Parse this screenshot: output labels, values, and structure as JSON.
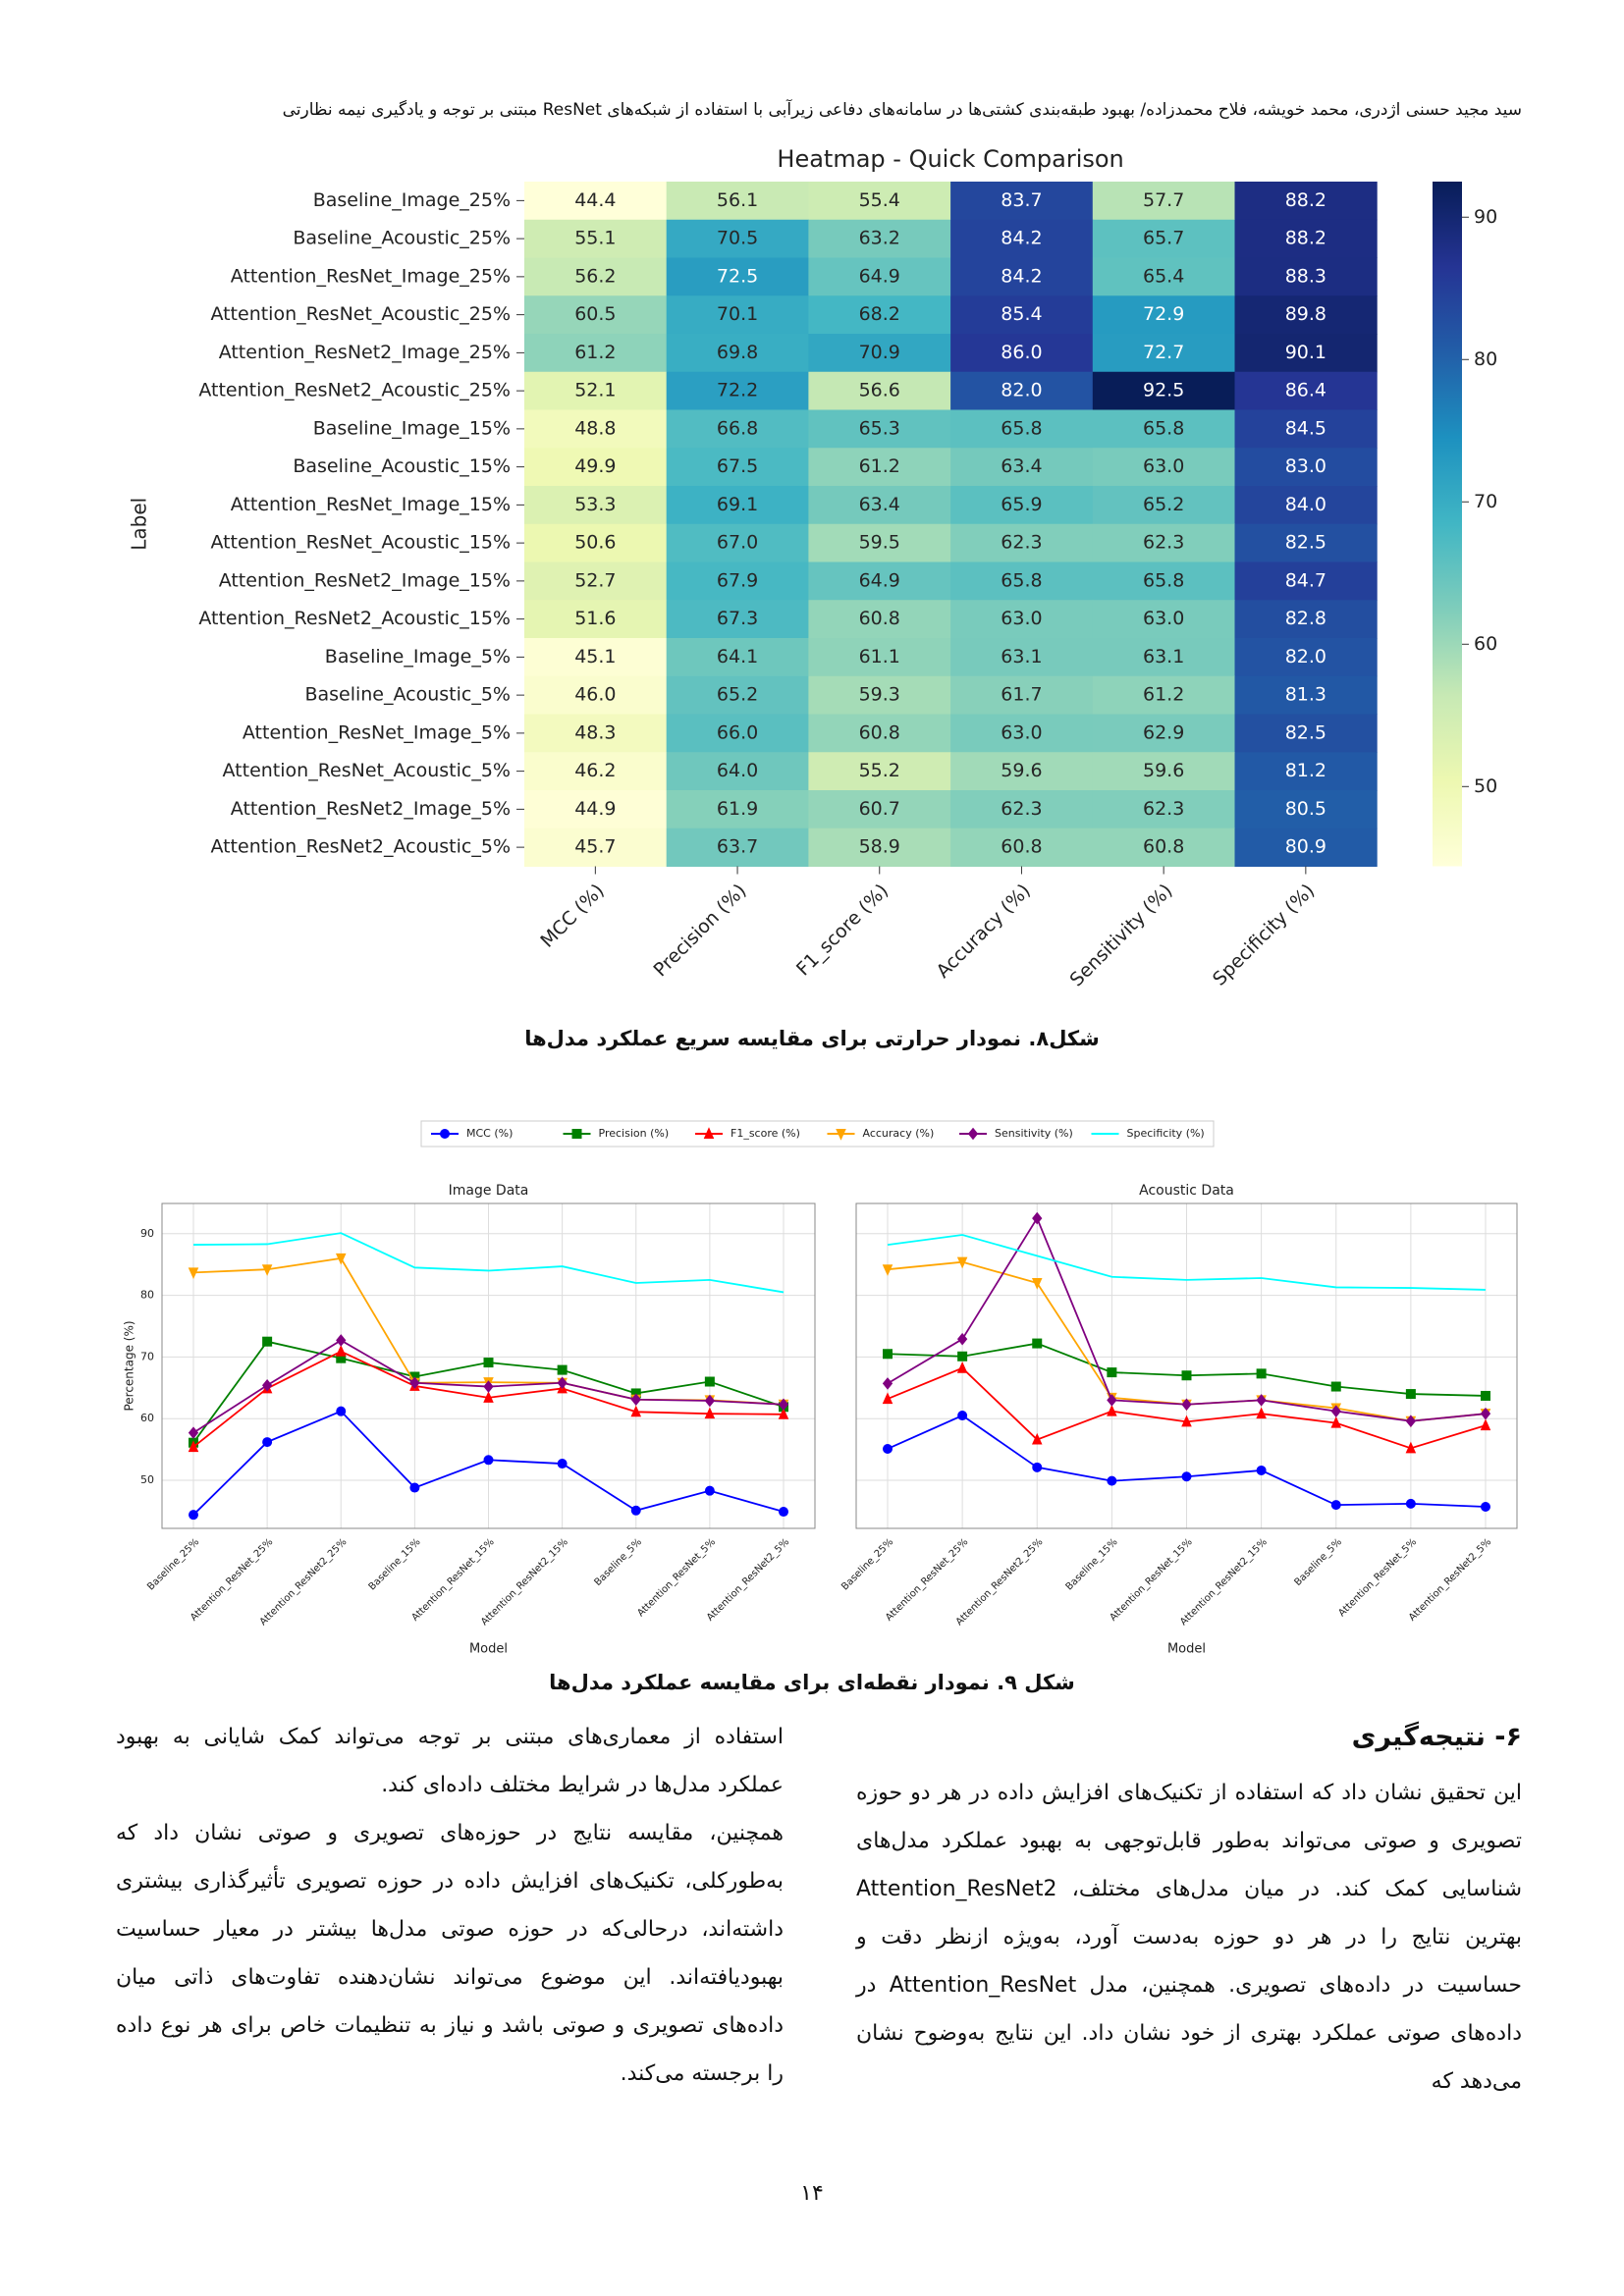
{
  "header": {
    "text": "سید مجید حسنی اژدری، محمد خویشه، فلاح محمدزاده/ بهبود طبقه‌بندی کشتی‌ها در سامانه‌های دفاعی زیرآبی با استفاده از شبکه‌های ResNet مبتنی بر توجه و یادگیری نیمه نظارتی"
  },
  "chart_data": [
    {
      "type": "heatmap",
      "title": "Heatmap - Quick Comparison",
      "ylabel": "Label",
      "rows": [
        "Baseline_Image_25%",
        "Baseline_Acoustic_25%",
        "Attention_ResNet_Image_25%",
        "Attention_ResNet_Acoustic_25%",
        "Attention_ResNet2_Image_25%",
        "Attention_ResNet2_Acoustic_25%",
        "Baseline_Image_15%",
        "Baseline_Acoustic_15%",
        "Attention_ResNet_Image_15%",
        "Attention_ResNet_Acoustic_15%",
        "Attention_ResNet2_Image_15%",
        "Attention_ResNet2_Acoustic_15%",
        "Baseline_Image_5%",
        "Baseline_Acoustic_5%",
        "Attention_ResNet_Image_5%",
        "Attention_ResNet_Acoustic_5%",
        "Attention_ResNet2_Image_5%",
        "Attention_ResNet2_Acoustic_5%"
      ],
      "columns": [
        "MCC (%)",
        "Precision (%)",
        "F1_score (%)",
        "Accuracy (%)",
        "Sensitivity (%)",
        "Specificity (%)"
      ],
      "values": [
        [
          44.4,
          56.1,
          55.4,
          83.7,
          57.7,
          88.2
        ],
        [
          55.1,
          70.5,
          63.2,
          84.2,
          65.7,
          88.2
        ],
        [
          56.2,
          72.5,
          64.9,
          84.2,
          65.4,
          88.3
        ],
        [
          60.5,
          70.1,
          68.2,
          85.4,
          72.9,
          89.8
        ],
        [
          61.2,
          69.8,
          70.9,
          86.0,
          72.7,
          90.1
        ],
        [
          52.1,
          72.2,
          56.6,
          82.0,
          92.5,
          86.4
        ],
        [
          48.8,
          66.8,
          65.3,
          65.8,
          65.8,
          84.5
        ],
        [
          49.9,
          67.5,
          61.2,
          63.4,
          63.0,
          83.0
        ],
        [
          53.3,
          69.1,
          63.4,
          65.9,
          65.2,
          84.0
        ],
        [
          50.6,
          67.0,
          59.5,
          62.3,
          62.3,
          82.5
        ],
        [
          52.7,
          67.9,
          64.9,
          65.8,
          65.8,
          84.7
        ],
        [
          51.6,
          67.3,
          60.8,
          63.0,
          63.0,
          82.8
        ],
        [
          45.1,
          64.1,
          61.1,
          63.1,
          63.1,
          82.0
        ],
        [
          46.0,
          65.2,
          59.3,
          61.7,
          61.2,
          81.3
        ],
        [
          48.3,
          66.0,
          60.8,
          63.0,
          62.9,
          82.5
        ],
        [
          46.2,
          64.0,
          55.2,
          59.6,
          59.6,
          81.2
        ],
        [
          44.9,
          61.9,
          60.7,
          62.3,
          62.3,
          80.5
        ],
        [
          45.7,
          63.7,
          58.9,
          60.8,
          60.8,
          80.9
        ]
      ],
      "value_labels": [
        [
          "44.4",
          "56.1",
          "55.4",
          "83.7",
          "57.7",
          "88.2"
        ],
        [
          "55.1",
          "70.5",
          "63.2",
          "84.2",
          "65.7",
          "88.2"
        ],
        [
          "56.2",
          "72.5",
          "64.9",
          "84.2",
          "65.4",
          "88.3"
        ],
        [
          "60.5",
          "70.1",
          "68.2",
          "85.4",
          "72.9",
          "89.8"
        ],
        [
          "61.2",
          "69.8",
          "70.9",
          "86.0",
          "72.7",
          "90.1"
        ],
        [
          "52.1",
          "72.2",
          "56.6",
          "82.0",
          "92.5",
          "86.4"
        ],
        [
          "48.8",
          "66.8",
          "65.3",
          "65.8",
          "65.8",
          "84.5"
        ],
        [
          "49.9",
          "67.5",
          "61.2",
          "63.4",
          "63.0",
          "83.0"
        ],
        [
          "53.3",
          "69.1",
          "63.4",
          "65.9",
          "65.2",
          "84.0"
        ],
        [
          "50.6",
          "67.0",
          "59.5",
          "62.3",
          "62.3",
          "82.5"
        ],
        [
          "52.7",
          "67.9",
          "64.9",
          "65.8",
          "65.8",
          "84.7"
        ],
        [
          "51.6",
          "67.3",
          "60.8",
          "63.0",
          "63.0",
          "82.8"
        ],
        [
          "45.1",
          "64.1",
          "61.1",
          "63.1",
          "63.1",
          "82.0"
        ],
        [
          "46.0",
          "65.2",
          "59.3",
          "61.7",
          "61.2",
          "81.3"
        ],
        [
          "48.3",
          "66.0",
          "60.8",
          "63.0",
          "62.9",
          "82.5"
        ],
        [
          "46.2",
          "64.0",
          "55.2",
          "59.6",
          "59.6",
          "81.2"
        ],
        [
          "44.9",
          "61.9",
          "60.7",
          "62.3",
          "62.3",
          "80.5"
        ],
        [
          "45.7",
          "63.7",
          "58.9",
          "60.8",
          "60.8",
          "80.9"
        ]
      ],
      "zlim": [
        44.4,
        92.5
      ],
      "zticks": [
        50,
        60,
        70,
        80,
        90
      ],
      "colormap": [
        "#ffffd9",
        "#edf8b1",
        "#c7e9b4",
        "#7fcdbb",
        "#41b6c4",
        "#1d91c0",
        "#225ea8",
        "#253494",
        "#081d58"
      ]
    },
    {
      "type": "line",
      "categories": [
        "Baseline_25%",
        "Attention_ResNet_25%",
        "Attention_ResNet2_25%",
        "Baseline_15%",
        "Attention_ResNet_15%",
        "Attention_ResNet2_15%",
        "Baseline_5%",
        "Attention_ResNet_5%",
        "Attention_ResNet2_5%"
      ],
      "xlabel": "Model",
      "ylabel": "Percentage (%)",
      "ylim": [
        42.2,
        94.9
      ],
      "yticks": [
        50,
        60,
        70,
        80,
        90
      ],
      "grid": true,
      "series": [
        {
          "name": "MCC (%)",
          "color": "#0000ff",
          "marker": "o"
        },
        {
          "name": "Precision (%)",
          "color": "#008000",
          "marker": "s"
        },
        {
          "name": "F1_score (%)",
          "color": "#ff0000",
          "marker": "^"
        },
        {
          "name": "Accuracy (%)",
          "color": "#ffa500",
          "marker": "v"
        },
        {
          "name": "Sensitivity (%)",
          "color": "#800080",
          "marker": "D"
        },
        {
          "name": "Specificity (%)",
          "color": "#00ffff",
          "marker": null
        }
      ],
      "panels": [
        {
          "title": "Image Data",
          "values": [
            [
              44.4,
              56.2,
              61.2,
              48.8,
              53.3,
              52.7,
              45.1,
              48.3,
              44.9
            ],
            [
              56.1,
              72.5,
              69.8,
              66.8,
              69.1,
              67.9,
              64.1,
              66.0,
              61.9
            ],
            [
              55.4,
              64.9,
              70.9,
              65.3,
              63.4,
              64.9,
              61.1,
              60.8,
              60.7
            ],
            [
              83.7,
              84.2,
              86.0,
              65.8,
              65.9,
              65.8,
              63.1,
              63.0,
              62.3
            ],
            [
              57.7,
              65.4,
              72.7,
              65.8,
              65.2,
              65.8,
              63.1,
              62.9,
              62.3
            ],
            [
              88.2,
              88.3,
              90.1,
              84.5,
              84.0,
              84.7,
              82.0,
              82.5,
              80.5
            ]
          ]
        },
        {
          "title": "Acoustic Data",
          "values": [
            [
              55.1,
              60.5,
              52.1,
              49.9,
              50.6,
              51.6,
              46.0,
              46.2,
              45.7
            ],
            [
              70.5,
              70.1,
              72.2,
              67.5,
              67.0,
              67.3,
              65.2,
              64.0,
              63.7
            ],
            [
              63.2,
              68.2,
              56.6,
              61.2,
              59.5,
              60.8,
              59.3,
              55.2,
              58.9
            ],
            [
              84.2,
              85.4,
              82.0,
              63.4,
              62.3,
              63.0,
              61.7,
              59.6,
              60.8
            ],
            [
              65.7,
              72.9,
              92.5,
              63.0,
              62.3,
              63.0,
              61.2,
              59.6,
              60.8
            ],
            [
              88.2,
              89.8,
              86.4,
              83.0,
              82.5,
              82.8,
              81.3,
              81.2,
              80.9
            ]
          ]
        }
      ]
    }
  ],
  "figure_captions": [
    "شکل۸. نمودار حرارتی برای مقایسه سریع عملکرد مدل‌ها",
    "شکل ۹. نمودار نقطه‌ای برای مقایسه عملکرد مدل‌ها"
  ],
  "section": {
    "heading": "۶- نتیجه‌گیری",
    "paragraphs": [
      "این تحقیق نشان داد که استفاده از تکنیک‌های افزایش داده در هر دو حوزه تصویری و صوتی می‌تواند به‌طور قابل‌توجهی به بهبود عملکرد مدل‌های شناسایی کمک کند. در میان مدل‌های مختلف، Attention_ResNet2 بهترین نتایج را در هر دو حوزه به‌دست آورد، به‌ویژه ازنظر دقت و حساسیت در داده‌های تصویری. همچنین، مدل Attention_ResNet در داده‌های صوتی عملکرد بهتری از خود نشان داد. این نتایج به‌وضوح نشان می‌دهد که",
      "استفاده از معماری‌های مبتنی بر توجه می‌تواند کمک شایانی به بهبود عملکرد مدل‌ها در شرایط مختلف داده‌ای کند.",
      "همچنین، مقایسه نتایج در حوزه‌های تصویری و صوتی نشان داد که به‌طورکلی، تکنیک‌های افزایش داده در حوزه تصویری تأثیرگذاری بیشتری داشته‌اند، درحالی‌که در حوزه صوتی مدل‌ها بیشتر در معیار حساسیت بهبودیافته‌اند. این موضوع می‌تواند نشان‌دهنده تفاوت‌های ذاتی میان داده‌های تصویری و صوتی باشد و نیاز به تنظیمات خاص برای هر نوع داده را برجسته می‌کند."
    ]
  },
  "page_number": "۱۴"
}
